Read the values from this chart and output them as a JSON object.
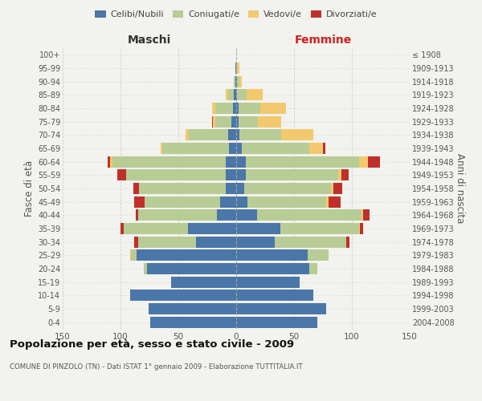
{
  "age_groups": [
    "0-4",
    "5-9",
    "10-14",
    "15-19",
    "20-24",
    "25-29",
    "30-34",
    "35-39",
    "40-44",
    "45-49",
    "50-54",
    "55-59",
    "60-64",
    "65-69",
    "70-74",
    "75-79",
    "80-84",
    "85-89",
    "90-94",
    "95-99",
    "100+"
  ],
  "birth_years": [
    "2004-2008",
    "1999-2003",
    "1994-1998",
    "1989-1993",
    "1984-1988",
    "1979-1983",
    "1974-1978",
    "1969-1973",
    "1964-1968",
    "1959-1963",
    "1954-1958",
    "1949-1953",
    "1944-1948",
    "1939-1943",
    "1934-1938",
    "1929-1933",
    "1924-1928",
    "1919-1923",
    "1914-1918",
    "1909-1913",
    "≤ 1908"
  ],
  "male": {
    "celibi": [
      74,
      76,
      92,
      56,
      77,
      86,
      35,
      42,
      17,
      14,
      9,
      9,
      9,
      6,
      7,
      4,
      3,
      2,
      1,
      1,
      0
    ],
    "coniugati": [
      0,
      0,
      0,
      0,
      3,
      5,
      50,
      55,
      68,
      65,
      75,
      86,
      98,
      58,
      34,
      14,
      15,
      5,
      1,
      0,
      0
    ],
    "vedovi": [
      0,
      0,
      0,
      0,
      0,
      1,
      0,
      0,
      0,
      0,
      0,
      0,
      2,
      1,
      3,
      2,
      3,
      2,
      0,
      0,
      0
    ],
    "divorziati": [
      0,
      0,
      0,
      0,
      0,
      0,
      3,
      3,
      2,
      9,
      5,
      8,
      2,
      0,
      0,
      1,
      0,
      0,
      0,
      0,
      0
    ]
  },
  "female": {
    "nubili": [
      70,
      78,
      67,
      55,
      63,
      62,
      33,
      38,
      18,
      10,
      7,
      8,
      8,
      5,
      3,
      2,
      2,
      1,
      1,
      0,
      0
    ],
    "coniugate": [
      0,
      0,
      0,
      0,
      7,
      18,
      62,
      68,
      90,
      68,
      75,
      80,
      98,
      58,
      36,
      17,
      19,
      8,
      2,
      1,
      0
    ],
    "vedove": [
      0,
      0,
      0,
      0,
      0,
      0,
      0,
      1,
      2,
      2,
      2,
      3,
      8,
      12,
      28,
      20,
      22,
      14,
      2,
      2,
      0
    ],
    "divorziate": [
      0,
      0,
      0,
      0,
      0,
      0,
      3,
      3,
      5,
      10,
      8,
      6,
      10,
      2,
      0,
      0,
      0,
      0,
      0,
      0,
      0
    ]
  },
  "colors": {
    "celibi": "#4a76a8",
    "coniugati": "#b8cc96",
    "vedovi": "#f2c96e",
    "divorziati": "#c0302a"
  },
  "xlim": 150,
  "title": "Popolazione per età, sesso e stato civile - 2009",
  "subtitle": "COMUNE DI PINZOLO (TN) - Dati ISTAT 1° gennaio 2009 - Elaborazione TUTTITALIA.IT",
  "ylabel_left": "Fasce di età",
  "ylabel_right": "Anni di nascita",
  "xlabel_left": "Maschi",
  "xlabel_right": "Femmine",
  "background_color": "#f2f2ee",
  "grid_color": "#cccccc"
}
